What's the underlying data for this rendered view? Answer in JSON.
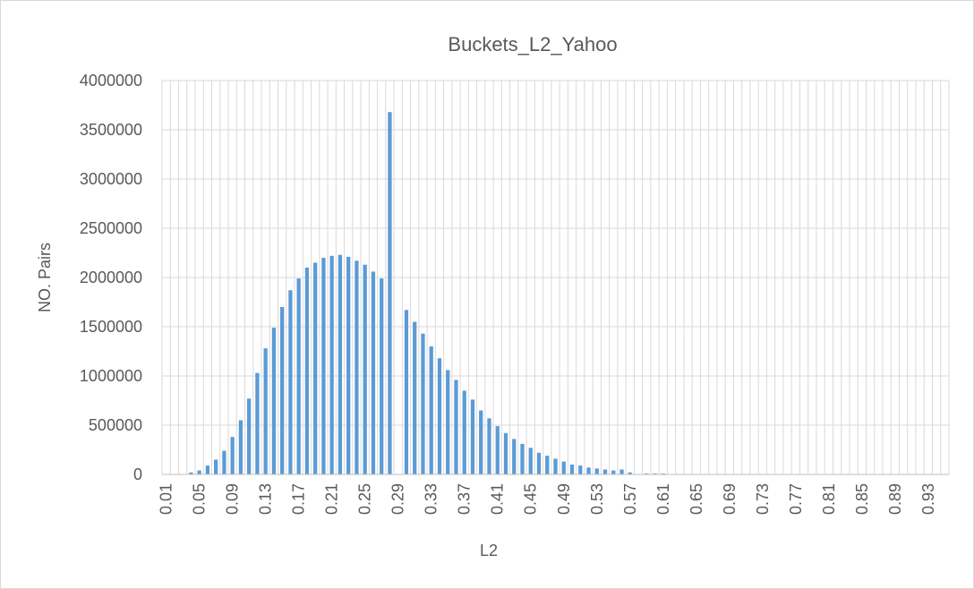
{
  "chart_data": {
    "type": "bar",
    "title": "Buckets_L2_Yahoo",
    "xlabel": "L2",
    "ylabel": "NO. Pairs",
    "ylim": [
      0,
      4000000
    ],
    "y_ticks": [
      0,
      500000,
      1000000,
      1500000,
      2000000,
      2500000,
      3000000,
      3500000,
      4000000
    ],
    "grid": true,
    "legend": "none",
    "bar_color": "#5b9bd5",
    "categories": [
      "0.01",
      "0.02",
      "0.03",
      "0.04",
      "0.05",
      "0.06",
      "0.07",
      "0.08",
      "0.09",
      "0.1",
      "0.11",
      "0.12",
      "0.13",
      "0.14",
      "0.15",
      "0.16",
      "0.17",
      "0.18",
      "0.19",
      "0.2",
      "0.21",
      "0.22",
      "0.23",
      "0.24",
      "0.25",
      "0.26",
      "0.27",
      "0.28",
      "0.29",
      "0.3",
      "0.31",
      "0.32",
      "0.33",
      "0.34",
      "0.35",
      "0.36",
      "0.37",
      "0.38",
      "0.39",
      "0.4",
      "0.41",
      "0.42",
      "0.43",
      "0.44",
      "0.45",
      "0.46",
      "0.47",
      "0.48",
      "0.49",
      "0.5",
      "0.51",
      "0.52",
      "0.53",
      "0.54",
      "0.55",
      "0.56",
      "0.57",
      "0.58",
      "0.59",
      "0.6",
      "0.61",
      "0.62",
      "0.63",
      "0.64",
      "0.65",
      "0.66",
      "0.67",
      "0.68",
      "0.69",
      "0.7",
      "0.71",
      "0.72",
      "0.73",
      "0.74",
      "0.75",
      "0.76",
      "0.77",
      "0.78",
      "0.79",
      "0.8",
      "0.81",
      "0.82",
      "0.83",
      "0.84",
      "0.85",
      "0.86",
      "0.87",
      "0.88",
      "0.89",
      "0.9",
      "0.91",
      "0.92",
      "0.93",
      "0.94",
      "0.95"
    ],
    "x_tick_labels": [
      "0.01",
      "0.05",
      "0.09",
      "0.13",
      "0.17",
      "0.21",
      "0.25",
      "0.29",
      "0.33",
      "0.37",
      "0.41",
      "0.45",
      "0.49",
      "0.53",
      "0.57",
      "0.61",
      "0.65",
      "0.69",
      "0.73",
      "0.77",
      "0.81",
      "0.85",
      "0.89",
      "0.93"
    ],
    "values": [
      0,
      0,
      0,
      20000,
      40000,
      90000,
      150000,
      240000,
      380000,
      550000,
      770000,
      1030000,
      1280000,
      1490000,
      1700000,
      1870000,
      1990000,
      2100000,
      2150000,
      2200000,
      2220000,
      2230000,
      2210000,
      2170000,
      2130000,
      2060000,
      1990000,
      3680000,
      0,
      1670000,
      1550000,
      1430000,
      1300000,
      1180000,
      1060000,
      960000,
      850000,
      760000,
      650000,
      570000,
      490000,
      420000,
      360000,
      310000,
      270000,
      220000,
      190000,
      160000,
      130000,
      100000,
      90000,
      70000,
      60000,
      50000,
      40000,
      50000,
      20000,
      0,
      10000,
      10000,
      10000,
      0,
      0,
      0,
      0,
      0,
      0,
      0,
      0,
      0,
      0,
      0,
      0,
      0,
      0,
      0,
      0,
      0,
      0,
      0,
      0,
      0,
      0,
      0,
      0,
      0,
      0,
      0,
      0,
      0,
      0,
      0,
      0,
      0,
      0
    ]
  }
}
